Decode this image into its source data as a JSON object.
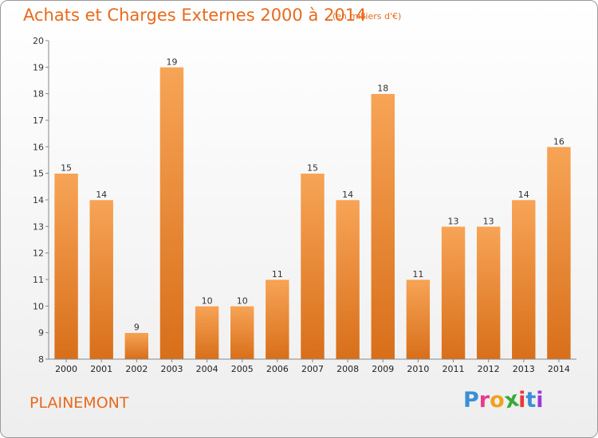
{
  "header": {
    "title": "Achats et Charges Externes 2000 à 2014",
    "subtitle": "(en milliers d'€)"
  },
  "footer": {
    "place": "PLAINEMONT",
    "brand_letters": [
      "P",
      "r",
      "o",
      "x",
      "i",
      "t",
      "i"
    ],
    "brand_colors": [
      "#3a8fd6",
      "#e83a8c",
      "#f0a21c",
      "#3aaa3a",
      "#e83a3a",
      "#3a8fd6",
      "#9a3ad6"
    ]
  },
  "colors": {
    "bar_top": "#f7a456",
    "bar_bottom": "#d86f1a",
    "accent": "#e86a1c"
  },
  "chart_data": {
    "type": "bar",
    "title": "Achats et Charges Externes 2000 à 2014",
    "subtitle": "(en milliers d'€)",
    "xlabel": "",
    "ylabel": "",
    "categories": [
      "2000",
      "2001",
      "2002",
      "2003",
      "2004",
      "2005",
      "2006",
      "2007",
      "2008",
      "2009",
      "2010",
      "2011",
      "2012",
      "2013",
      "2014"
    ],
    "values": [
      15,
      14,
      9,
      19,
      10,
      10,
      11,
      15,
      14,
      18,
      11,
      13,
      13,
      14,
      16
    ],
    "ylim": [
      8,
      20
    ],
    "yticks": [
      "8",
      "9",
      "10",
      "11",
      "12",
      "13",
      "14",
      "15",
      "16",
      "17",
      "18",
      "19",
      "20"
    ],
    "grid": false,
    "legend": "none"
  }
}
